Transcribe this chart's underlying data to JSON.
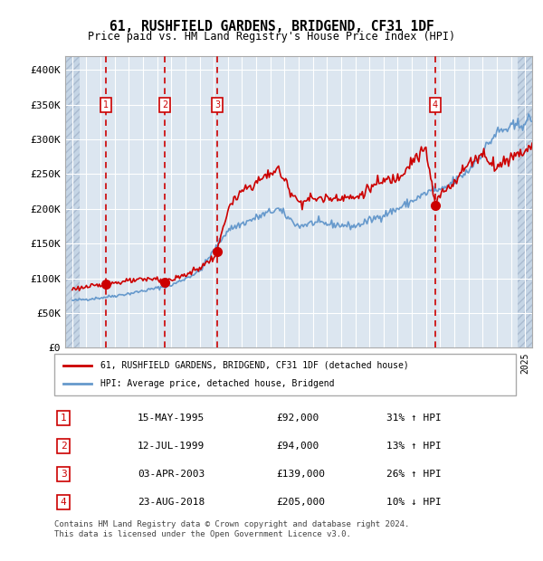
{
  "title": "61, RUSHFIELD GARDENS, BRIDGEND, CF31 1DF",
  "subtitle": "Price paid vs. HM Land Registry's House Price Index (HPI)",
  "sale_color": "#cc0000",
  "hpi_color": "#6699cc",
  "bg_color": "#dce6f0",
  "plot_bg": "#dce6f0",
  "hatch_color": "#b0c4d8",
  "ylim": [
    0,
    420000
  ],
  "yticks": [
    0,
    50000,
    100000,
    150000,
    200000,
    250000,
    300000,
    350000,
    400000
  ],
  "ytick_labels": [
    "£0",
    "£50K",
    "£100K",
    "£150K",
    "£200K",
    "£250K",
    "£300K",
    "£350K",
    "£400K"
  ],
  "sales": [
    {
      "date_num": 1995.37,
      "price": 92000,
      "label": "1"
    },
    {
      "date_num": 1999.53,
      "price": 94000,
      "label": "2"
    },
    {
      "date_num": 2003.25,
      "price": 139000,
      "label": "3"
    },
    {
      "date_num": 2018.65,
      "price": 205000,
      "label": "4"
    }
  ],
  "legend_items": [
    {
      "label": "61, RUSHFIELD GARDENS, BRIDGEND, CF31 1DF (detached house)",
      "color": "#cc0000"
    },
    {
      "label": "HPI: Average price, detached house, Bridgend",
      "color": "#6699cc"
    }
  ],
  "table_rows": [
    {
      "num": "1",
      "date": "15-MAY-1995",
      "price": "£92,000",
      "change": "31% ↑ HPI"
    },
    {
      "num": "2",
      "date": "12-JUL-1999",
      "price": "£94,000",
      "change": "13% ↑ HPI"
    },
    {
      "num": "3",
      "date": "03-APR-2003",
      "price": "£139,000",
      "change": "26% ↑ HPI"
    },
    {
      "num": "4",
      "date": "23-AUG-2018",
      "price": "£205,000",
      "change": "10% ↓ HPI"
    }
  ],
  "footnote": "Contains HM Land Registry data © Crown copyright and database right 2024.\nThis data is licensed under the Open Government Licence v3.0.",
  "xlim_start": 1992.5,
  "xlim_end": 2025.5
}
